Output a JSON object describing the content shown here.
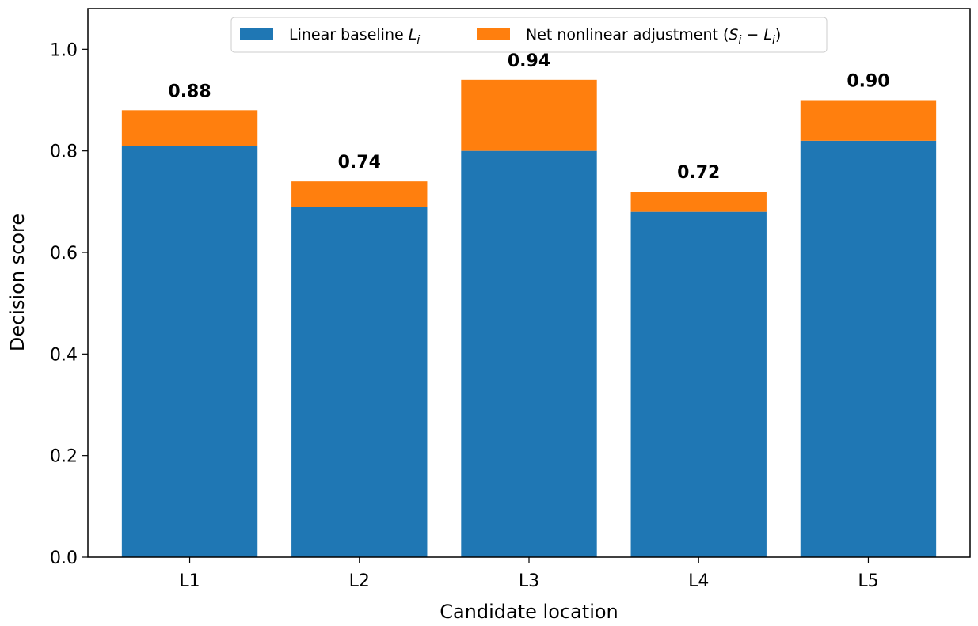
{
  "chart_data": {
    "type": "bar",
    "stacked": true,
    "categories": [
      "L1",
      "L2",
      "L3",
      "L4",
      "L5"
    ],
    "series": [
      {
        "name": "Linear baseline L_i",
        "values": [
          0.81,
          0.69,
          0.8,
          0.68,
          0.82
        ],
        "color": "#1f77b4"
      },
      {
        "name": "Net nonlinear adjustment (S_i − L_i)",
        "values": [
          0.07,
          0.05,
          0.14,
          0.04,
          0.08
        ],
        "color": "#ff7f0e"
      }
    ],
    "totals": [
      "0.88",
      "0.74",
      "0.94",
      "0.72",
      "0.90"
    ],
    "xlabel": "Candidate location",
    "ylabel": "Decision score",
    "ylim": [
      0,
      1.08
    ],
    "yticks": [
      "0.0",
      "0.2",
      "0.4",
      "0.6",
      "0.8",
      "1.0"
    ],
    "legend": {
      "placement": "top-center",
      "entries": [
        {
          "prefix": "Linear baseline ",
          "math": "L",
          "sub": "i",
          "suffix": ""
        },
        {
          "prefix": "Net nonlinear adjustment (",
          "math": "S",
          "sub": "i",
          "mid": " − ",
          "math2": "L",
          "sub2": "i",
          "suffix": ")"
        }
      ]
    },
    "grid": false
  }
}
